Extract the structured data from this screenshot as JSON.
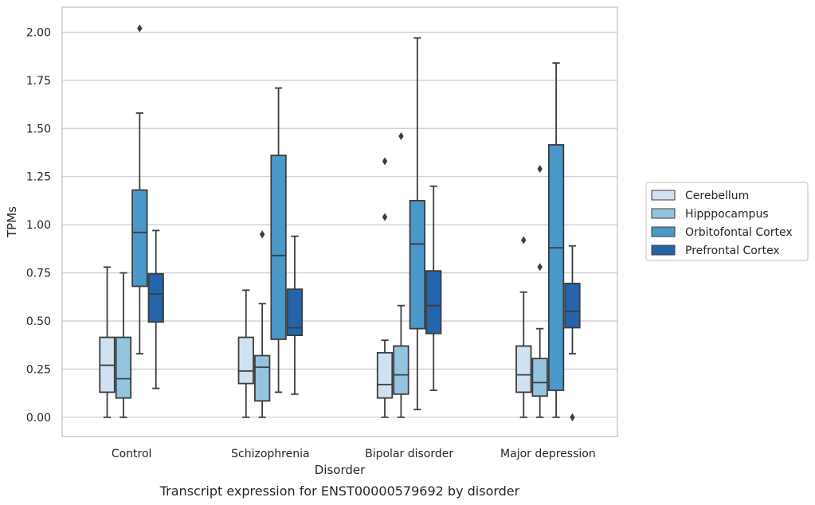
{
  "chart_data": {
    "type": "boxplot",
    "caption": "Transcript expression for ENST00000579692 by disorder",
    "xlabel": "Disorder",
    "ylabel": "TPMs",
    "ylim": [
      -0.1,
      2.13
    ],
    "yticks": [
      0.0,
      0.25,
      0.5,
      0.75,
      1.0,
      1.25,
      1.5,
      1.75,
      2.0
    ],
    "ytick_labels": [
      "0.00",
      "0.25",
      "0.50",
      "0.75",
      "1.00",
      "1.25",
      "1.50",
      "1.75",
      "2.00"
    ],
    "grid": true,
    "legend_position": "right",
    "categories": [
      "Control",
      "Schizophrenia",
      "Bipolar disorder",
      "Major depression"
    ],
    "series": [
      {
        "name": "Cerebellum",
        "color": "#d0e1f2",
        "boxes": [
          {
            "whisker_low": 0.0,
            "q1": 0.13,
            "median": 0.27,
            "q3": 0.415,
            "whisker_high": 0.78,
            "outliers": []
          },
          {
            "whisker_low": 0.0,
            "q1": 0.175,
            "median": 0.24,
            "q3": 0.415,
            "whisker_high": 0.66,
            "outliers": []
          },
          {
            "whisker_low": 0.0,
            "q1": 0.1,
            "median": 0.17,
            "q3": 0.335,
            "whisker_high": 0.4,
            "outliers": [
              1.04,
              1.33
            ]
          },
          {
            "whisker_low": 0.0,
            "q1": 0.13,
            "median": 0.22,
            "q3": 0.37,
            "whisker_high": 0.65,
            "outliers": [
              0.92
            ]
          }
        ]
      },
      {
        "name": "Hipppocampus",
        "color": "#94c4df",
        "boxes": [
          {
            "whisker_low": 0.0,
            "q1": 0.1,
            "median": 0.2,
            "q3": 0.415,
            "whisker_high": 0.75,
            "outliers": []
          },
          {
            "whisker_low": 0.0,
            "q1": 0.085,
            "median": 0.26,
            "q3": 0.32,
            "whisker_high": 0.59,
            "outliers": [
              0.95
            ]
          },
          {
            "whisker_low": 0.0,
            "q1": 0.12,
            "median": 0.22,
            "q3": 0.37,
            "whisker_high": 0.58,
            "outliers": [
              1.46
            ]
          },
          {
            "whisker_low": 0.0,
            "q1": 0.11,
            "median": 0.18,
            "q3": 0.305,
            "whisker_high": 0.46,
            "outliers": [
              0.78,
              1.29
            ]
          }
        ]
      },
      {
        "name": "Orbitofontal Cortex",
        "color": "#4a98c9",
        "boxes": [
          {
            "whisker_low": 0.33,
            "q1": 0.68,
            "median": 0.96,
            "q3": 1.18,
            "whisker_high": 1.58,
            "outliers": [
              2.02
            ]
          },
          {
            "whisker_low": 0.13,
            "q1": 0.405,
            "median": 0.84,
            "q3": 1.36,
            "whisker_high": 1.71,
            "outliers": []
          },
          {
            "whisker_low": 0.04,
            "q1": 0.46,
            "median": 0.9,
            "q3": 1.125,
            "whisker_high": 1.97,
            "outliers": []
          },
          {
            "whisker_low": 0.0,
            "q1": 0.14,
            "median": 0.88,
            "q3": 1.415,
            "whisker_high": 1.84,
            "outliers": []
          }
        ]
      },
      {
        "name": "Prefrontal Cortex",
        "color": "#2364aa",
        "boxes": [
          {
            "whisker_low": 0.15,
            "q1": 0.495,
            "median": 0.64,
            "q3": 0.745,
            "whisker_high": 0.97,
            "outliers": []
          },
          {
            "whisker_low": 0.12,
            "q1": 0.425,
            "median": 0.465,
            "q3": 0.665,
            "whisker_high": 0.94,
            "outliers": []
          },
          {
            "whisker_low": 0.14,
            "q1": 0.435,
            "median": 0.58,
            "q3": 0.76,
            "whisker_high": 1.2,
            "outliers": []
          },
          {
            "whisker_low": 0.33,
            "q1": 0.465,
            "median": 0.55,
            "q3": 0.695,
            "whisker_high": 0.89,
            "outliers": [
              0.0
            ]
          }
        ]
      }
    ]
  }
}
